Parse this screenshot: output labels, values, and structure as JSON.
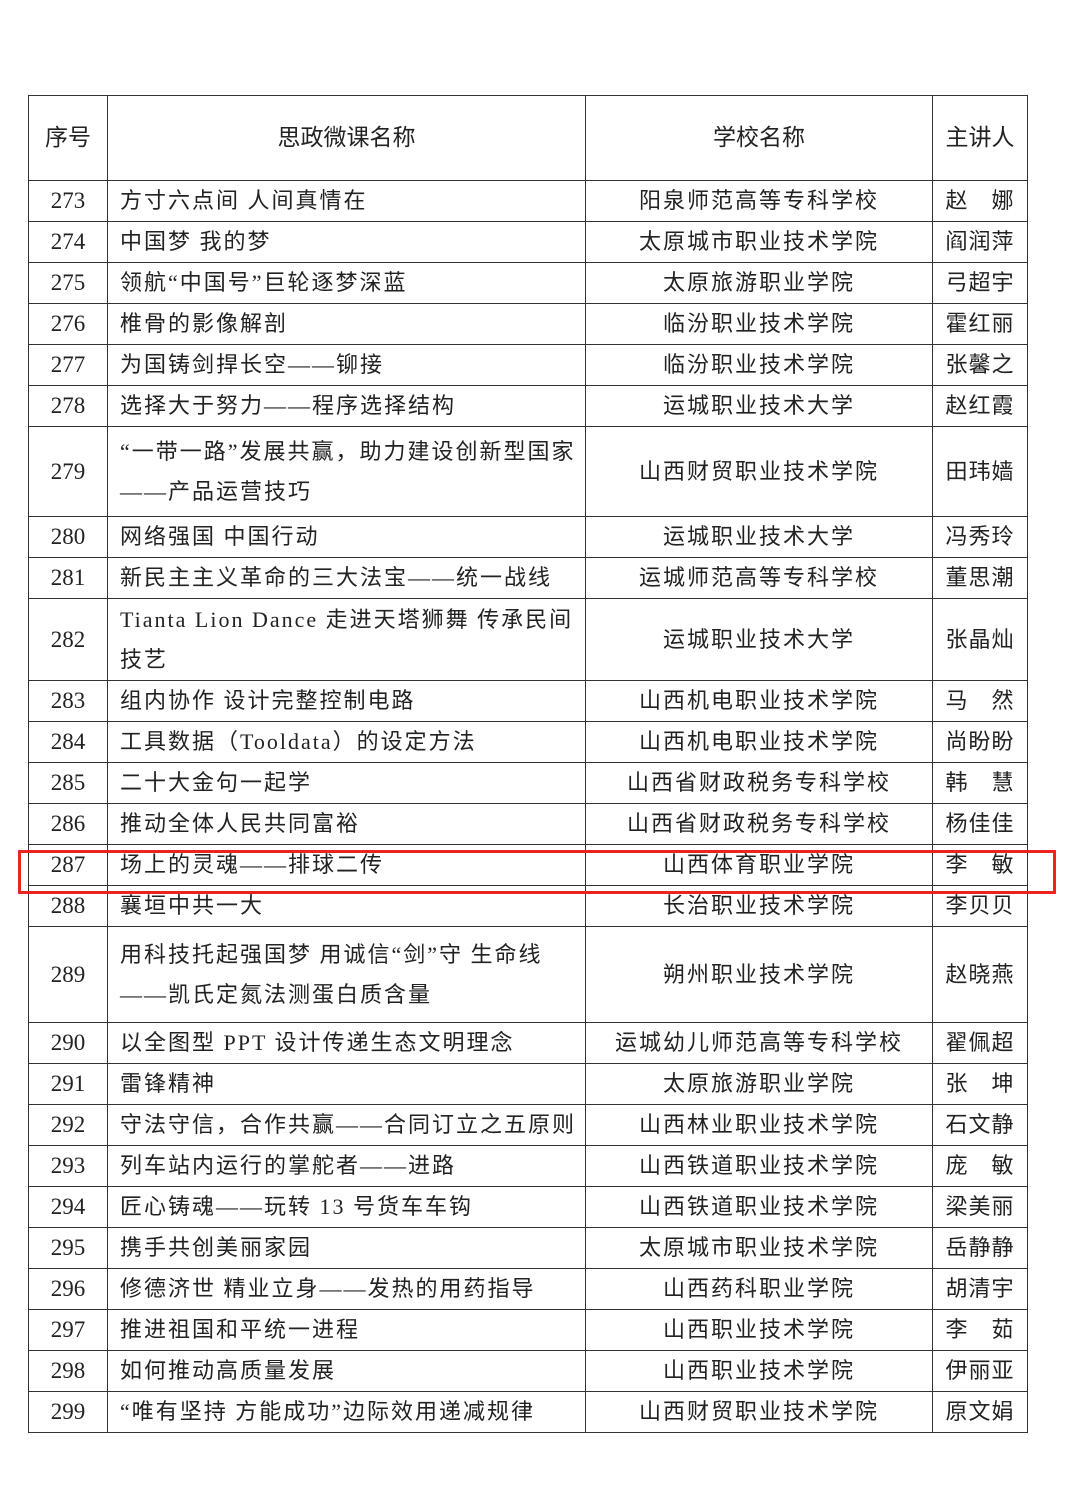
{
  "header": {
    "col_num": "序号",
    "col_title": "思政微课名称",
    "col_school": "学校名称",
    "col_person": "主讲人"
  },
  "rows": [
    {
      "num": "273",
      "title": "方寸六点间 人间真情在",
      "school": "阳泉师范高等专科学校",
      "person": "赵　娜"
    },
    {
      "num": "274",
      "title": "中国梦 我的梦",
      "school": "太原城市职业技术学院",
      "person": "阎润萍"
    },
    {
      "num": "275",
      "title": "领航“中国号”巨轮逐梦深蓝",
      "school": "太原旅游职业学院",
      "person": "弓超宇"
    },
    {
      "num": "276",
      "title": "椎骨的影像解剖",
      "school": "临汾职业技术学院",
      "person": "霍红丽"
    },
    {
      "num": "277",
      "title": "为国铸剑捍长空——铆接",
      "school": "临汾职业技术学院",
      "person": "张馨之"
    },
    {
      "num": "278",
      "title": "选择大于努力——程序选择结构",
      "school": "运城职业技术大学",
      "person": "赵红霞"
    },
    {
      "num": "279",
      "title": "“一带一路”发展共赢，助力建设创新型国家——产品运营技巧",
      "school": "山西财贸职业技术学院",
      "person": "田玮嫱"
    },
    {
      "num": "280",
      "title": "网络强国 中国行动",
      "school": "运城职业技术大学",
      "person": "冯秀玲"
    },
    {
      "num": "281",
      "title": "新民主主义革命的三大法宝——统一战线",
      "school": "运城师范高等专科学校",
      "person": "董思潮"
    },
    {
      "num": "282",
      "title": "Tianta Lion Dance 走进天塔狮舞 传承民间技艺",
      "school": "运城职业技术大学",
      "person": "张晶灿"
    },
    {
      "num": "283",
      "title": "组内协作 设计完整控制电路",
      "school": "山西机电职业技术学院",
      "person": "马　然"
    },
    {
      "num": "284",
      "title": "工具数据（Tooldata）的设定方法",
      "school": "山西机电职业技术学院",
      "person": "尚盼盼"
    },
    {
      "num": "285",
      "title": "二十大金句一起学",
      "school": "山西省财政税务专科学校",
      "person": "韩　慧"
    },
    {
      "num": "286",
      "title": "推动全体人民共同富裕",
      "school": "山西省财政税务专科学校",
      "person": "杨佳佳"
    },
    {
      "num": "287",
      "title": "场上的灵魂——排球二传",
      "school": "山西体育职业学院",
      "person": "李　敏"
    },
    {
      "num": "288",
      "title": "襄垣中共一大",
      "school": "长治职业技术学院",
      "person": "李贝贝"
    },
    {
      "num": "289",
      "title": "用科技托起强国梦 用诚信“剑”守 生命线——凯氏定氮法测蛋白质含量",
      "school": "朔州职业技术学院",
      "person": "赵晓燕"
    },
    {
      "num": "290",
      "title": "以全图型 PPT 设计传递生态文明理念",
      "school": "运城幼儿师范高等专科学校",
      "person": "翟佩超"
    },
    {
      "num": "291",
      "title": "雷锋精神",
      "school": "太原旅游职业学院",
      "person": "张　坤"
    },
    {
      "num": "292",
      "title": "守法守信，合作共赢——合同订立之五原则",
      "school": "山西林业职业技术学院",
      "person": "石文静"
    },
    {
      "num": "293",
      "title": "列车站内运行的掌舵者——进路",
      "school": "山西铁道职业技术学院",
      "person": "庞　敏"
    },
    {
      "num": "294",
      "title": "匠心铸魂——玩转 13 号货车车钩",
      "school": "山西铁道职业技术学院",
      "person": "梁美丽"
    },
    {
      "num": "295",
      "title": "携手共创美丽家园",
      "school": "太原城市职业技术学院",
      "person": "岳静静"
    },
    {
      "num": "296",
      "title": "修德济世 精业立身——发热的用药指导",
      "school": "山西药科职业学院",
      "person": "胡清宇"
    },
    {
      "num": "297",
      "title": "推进祖国和平统一进程",
      "school": "山西职业技术学院",
      "person": "李　茹"
    },
    {
      "num": "298",
      "title": "如何推动高质量发展",
      "school": "山西职业技术学院",
      "person": "伊丽亚"
    },
    {
      "num": "299",
      "title": "“唯有坚持 方能成功”边际效用递减规律",
      "school": "山西财贸职业技术学院",
      "person": "原文娟"
    }
  ],
  "highlight": {
    "row": "287",
    "color": "#e8261e"
  }
}
